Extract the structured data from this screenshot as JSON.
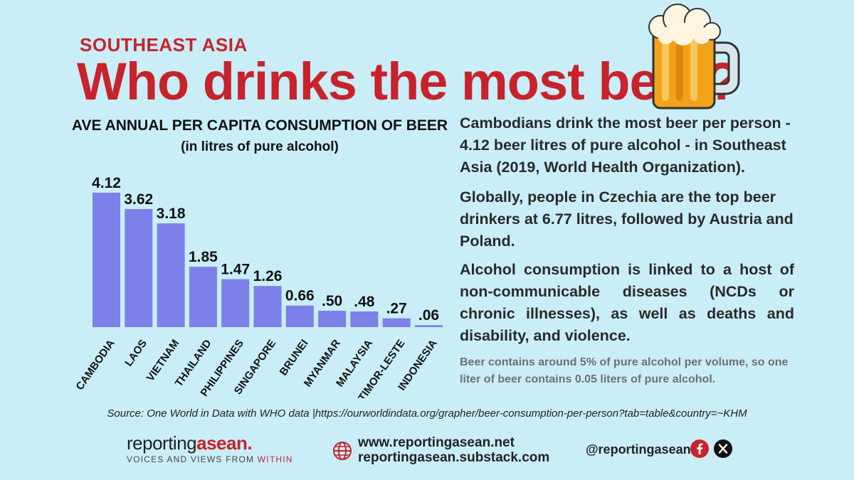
{
  "header": {
    "kicker": "SOUTHEAST ASIA",
    "title": "Who drinks the most beer?"
  },
  "chart_data": {
    "type": "bar",
    "title": "AVE ANNUAL PER CAPITA CONSUMPTION OF BEER",
    "subtitle": "(in litres of pure alcohol)",
    "categories": [
      "CAMBODIA",
      "LAOS",
      "VIETNAM",
      "THAILAND",
      "PHILIPPINES",
      "SINGAPORE",
      "BRUNEI",
      "MYANMAR",
      "MALAYSIA",
      "TIMOR-LESTE",
      "INDONESIA"
    ],
    "values": [
      4.12,
      3.62,
      3.18,
      1.85,
      1.47,
      1.26,
      0.66,
      0.5,
      0.48,
      0.27,
      0.06
    ],
    "value_labels": [
      "4.12",
      "3.62",
      "3.18",
      "1.85",
      "1.47",
      "1.26",
      "0.66",
      ".50",
      ".48",
      ".27",
      ".06"
    ],
    "ylim": [
      0,
      4.12
    ],
    "grid": false,
    "bar_color": "#7d80e8"
  },
  "text": {
    "p1": "Cambodians drink the most beer per person - 4.12 beer litres of pure alcohol - in Southeast Asia (2019, World Health Organization).",
    "p2": "Globally, people in Czechia are the top beer drinkers at 6.77 litres, followed by Austria and Poland.",
    "p3": "Alcohol consumption is linked to a host of non-communicable diseases (NCDs or chronic illnesses), as well as deaths and disability, and violence.",
    "note": "Beer contains around 5% of pure alcohol per volume, so one liter of beer contains 0.05 liters of pure alcohol."
  },
  "source": "Source: One World in Data with WHO data |https://ourworldindata.org/grapher/beer-consumption-per-person?tab=table&country=~KHM",
  "footer": {
    "brand_a": "reporting",
    "brand_b": "asean.",
    "tagline_a": "VOICES AND VIEWS FROM ",
    "tagline_b": "WITHIN",
    "web1": "www.reportingasean.net",
    "web2": "reportingasean.substack.com",
    "handle": "@reportingasean"
  },
  "colors": {
    "background": "#c9eef7",
    "accent": "#c8232c",
    "bar": "#7d80e8"
  },
  "icons": [
    "beer-mug-icon",
    "globe-icon",
    "facebook-icon",
    "x-icon"
  ]
}
